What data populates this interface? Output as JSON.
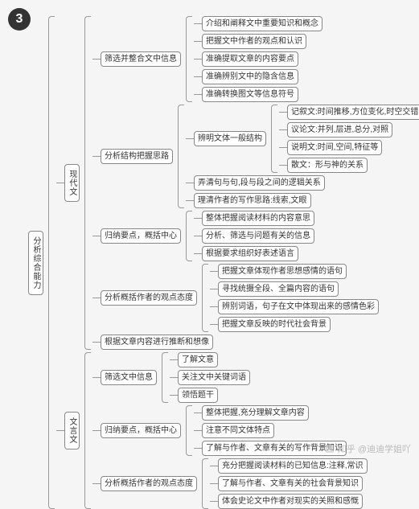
{
  "badge": "3",
  "watermark_text": "知乎 @迪迪学姐吖",
  "colors": {
    "node_border": "#888888",
    "node_bg": "#ffffff",
    "connector": "#999999",
    "text": "#333333",
    "page_bg": "#f5f5f5",
    "badge_bg": "#333333",
    "badge_fg": "#ffffff",
    "watermark": "#bbbbbb"
  },
  "typography": {
    "node_fontsize": 10,
    "badge_fontsize": 16,
    "watermark_fontsize": 11
  },
  "layout": {
    "type": "tree",
    "orientation": "horizontal",
    "node_radius": 4,
    "gap": 3
  },
  "tree": {
    "label": "分析综合能力",
    "children": [
      {
        "label": "现代文",
        "children": [
          {
            "label": "筛选并整合文中信息",
            "children": [
              {
                "label": "介绍和阐释文中重要知识和概念"
              },
              {
                "label": "把握文中作者的观点和认识"
              },
              {
                "label": "准确提取文章的内容要点"
              },
              {
                "label": "准确辨别文中的隐含信息"
              },
              {
                "label": "准确转换图文等信息符号"
              }
            ]
          },
          {
            "label": "分析结构把握思路",
            "children": [
              {
                "label": "辨明文体一般结构",
                "children": [
                  {
                    "label": "记叙文:时间推移,方位变化,时空交错,认识变化等"
                  },
                  {
                    "label": "议论文:并列,层进,总分,对照"
                  },
                  {
                    "label": "说明文:时间,空间,特征等"
                  },
                  {
                    "label": "散文：形与神的关系"
                  }
                ]
              },
              {
                "label": "弄清句与句,段与段之间的逻辑关系"
              },
              {
                "label": "理清作者的写作思路:线索,文眼"
              }
            ]
          },
          {
            "label": "归纳要点，概括中心",
            "children": [
              {
                "label": "整体把握阅读材料的内容意思"
              },
              {
                "label": "分析、筛选与问题有关的信息"
              },
              {
                "label": "根据要求组织好表述语言"
              }
            ]
          },
          {
            "label": "分析概括作者的观点态度",
            "children": [
              {
                "label": "把握文章体现作者思想感情的语句"
              },
              {
                "label": "寻找统摄全段、全篇内容的语句"
              },
              {
                "label": "辨别词语，句子在文中体现出来的感情色彩"
              },
              {
                "label": "把握文章反映的时代社会背景"
              }
            ]
          },
          {
            "label": "根据文章内容进行推断和想像"
          }
        ]
      },
      {
        "label": "文言文",
        "children": [
          {
            "label": "筛选文中信息",
            "children": [
              {
                "label": "了解文意"
              },
              {
                "label": "关注文中关键词语"
              },
              {
                "label": "领悟题干"
              }
            ]
          },
          {
            "label": "归纳要点，概括中心",
            "children": [
              {
                "label": "整体把握,充分理解文章内容"
              },
              {
                "label": "注意不同文体特点"
              },
              {
                "label": "了解与作者、文章有关的写作背景知识"
              }
            ]
          },
          {
            "label": "分析概括作者的观点态度",
            "children": [
              {
                "label": "充分把握阅读材料的已知信息:注释,常识"
              },
              {
                "label": "了解与作者、文章有关的社会背景知识"
              },
              {
                "label": "体会史论文中作者对现实的关照和感慨"
              }
            ]
          }
        ]
      }
    ]
  }
}
